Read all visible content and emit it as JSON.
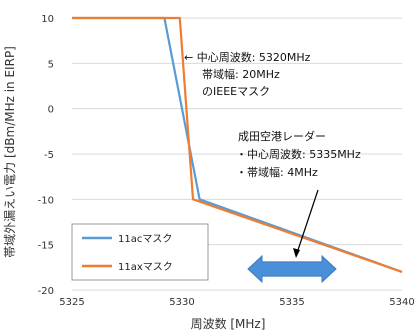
{
  "chart_data": {
    "type": "line",
    "title": "",
    "xlabel": "周波数 [MHz]",
    "ylabel": "帯域外漏えい電力 [dBm/MHz in EIRP]",
    "xlim": [
      5325,
      5340
    ],
    "ylim": [
      -20,
      10
    ],
    "x_ticks": [
      "5325",
      "5330",
      "5335",
      "5340"
    ],
    "y_ticks": [
      "10",
      "5",
      "0",
      "-5",
      "-10",
      "-15",
      "-20"
    ],
    "grid": "horizontal",
    "legend_position": "bottom-left",
    "series": [
      {
        "name": "11acマスク",
        "color": "#5b9bd5",
        "x": [
          5325,
          5329.2,
          5330.8,
          5340
        ],
        "y": [
          10,
          10,
          -10,
          -18
        ]
      },
      {
        "name": "11axマスク",
        "color": "#ed7d31",
        "x": [
          5325,
          5329.9,
          5330.5,
          5340
        ],
        "y": [
          10,
          10,
          -10,
          -18
        ]
      }
    ],
    "annotations": [
      {
        "lines": [
          "← 中心周波数: 5320MHz",
          "帯域幅: 20MHz",
          "のIEEEマスク"
        ]
      },
      {
        "lines": [
          "成田空港レーダー",
          "・中心周波数: 5335MHz",
          "・帯域幅: 4MHz"
        ]
      }
    ],
    "radar_band": {
      "center": 5335,
      "width": 4,
      "color": "#4a90d9"
    }
  }
}
